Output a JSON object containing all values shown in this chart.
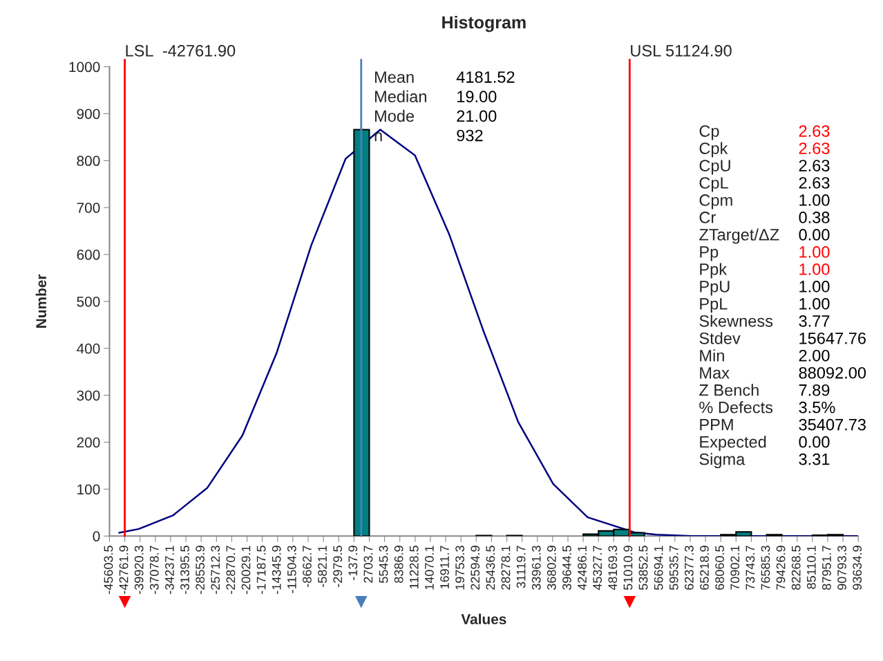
{
  "chart_data": {
    "type": "histogram",
    "title": "Histogram",
    "xlabel": "Values",
    "ylabel": "Number",
    "bins": [
      -45603.5,
      -42761.9,
      -39920.3,
      -37078.7,
      -34237.1,
      -31395.5,
      -28553.9,
      -25712.3,
      -22870.7,
      -20029.1,
      -17187.5,
      -14345.9,
      -11504.3,
      -8662.7,
      -5821.1,
      -2979.5,
      -137.9,
      2703.7,
      5545.3,
      8386.9,
      11228.5,
      14070.1,
      16911.7,
      19753.3,
      22594.9,
      25436.5,
      28278.1,
      31119.7,
      33961.3,
      36802.9,
      39644.5,
      42486.1,
      45327.7,
      48169.3,
      51010.9,
      53852.5,
      56694.1,
      59535.7,
      62377.3,
      65218.9,
      68060.5,
      70902.1,
      73743.7,
      76585.3,
      79426.9,
      82268.5,
      85110.1,
      87951.7,
      90793.3,
      93634.9
    ],
    "values": [
      0,
      0,
      0,
      0,
      0,
      0,
      0,
      0,
      0,
      0,
      0,
      0,
      0,
      0,
      0,
      0,
      866,
      0,
      0,
      0,
      0,
      0,
      0,
      0,
      1,
      0,
      1,
      0,
      0,
      0,
      0,
      4,
      11,
      14,
      7,
      0,
      0,
      0,
      0,
      0,
      3,
      9,
      0,
      3,
      0,
      0,
      2,
      3,
      0
    ],
    "color": "#008080",
    "series": [
      {
        "type": "line",
        "color": "#000080",
        "x": [
          -43800,
          -40200,
          -33800,
          -27400,
          -20900,
          -14500,
          -8100,
          -1700,
          4750,
          11200,
          17600,
          24000,
          30400,
          36900,
          43300,
          52000,
          56100,
          62600,
          93400
        ],
        "values": [
          7,
          15,
          44,
          103,
          214,
          391,
          619,
          804,
          866,
          811,
          642,
          435,
          243,
          111,
          40,
          8,
          3,
          0,
          0
        ]
      }
    ],
    "xlim": [
      -45603.5,
      93634.9
    ],
    "xticks": [
      -45603.5,
      -42761.9,
      -39920.3,
      -37078.7,
      -34237.1,
      -31395.5,
      -28553.9,
      -25712.3,
      -22870.7,
      -20029.1,
      -17187.5,
      -14345.9,
      -11504.3,
      -8662.7,
      -5821.1,
      -2979.5,
      -137.9,
      2703.7,
      5545.3,
      8386.9,
      11228.5,
      14070.1,
      16911.7,
      19753.3,
      22594.9,
      25436.5,
      28278.1,
      31119.7,
      33961.3,
      36802.9,
      39644.5,
      42486.1,
      45327.7,
      48169.3,
      51010.9,
      53852.5,
      56694.1,
      59535.7,
      62377.3,
      65218.9,
      68060.5,
      70902.1,
      73743.7,
      76585.3,
      79426.9,
      82268.5,
      85110.1,
      87951.7,
      90793.3,
      93634.9
    ],
    "ylim": [
      0,
      1000
    ],
    "yticks": [
      0,
      100,
      200,
      300,
      400,
      500,
      600,
      700,
      800,
      900,
      1000
    ],
    "grid": false,
    "ref_lines": [
      {
        "axis": "x",
        "value": -42761.9,
        "label": "LSL  -42761.90",
        "color": "#ff0000"
      },
      {
        "axis": "x",
        "value": 51124.9,
        "label": "USL 51124.90",
        "color": "#ff0000"
      },
      {
        "axis": "x",
        "value": 1200,
        "color": "#4a7ebb"
      }
    ],
    "annotations": [
      "Mean",
      "4181.52",
      "Median",
      "19.00",
      "Mode",
      "21.00",
      "n",
      "932",
      "Cp",
      "2.63",
      "Cpk",
      "2.63",
      "CpU",
      "2.63",
      "CpL",
      "2.63",
      "Cpm",
      "1.00",
      "Cr",
      "0.38",
      "ZTarget/ΔZ",
      "0.00",
      "Pp",
      "1.00",
      "Ppk",
      "1.00",
      "PpU",
      "1.00",
      "PpL",
      "1.00",
      "Skewness",
      "3.77",
      "Stdev",
      "15647.76",
      "Min",
      "2.00",
      "Max",
      "88092.00",
      "Z Bench",
      "7.89",
      "% Defects",
      "3.5%",
      "PPM",
      "35407.73",
      "Expected",
      "0.00",
      "Sigma",
      "3.31"
    ]
  }
}
